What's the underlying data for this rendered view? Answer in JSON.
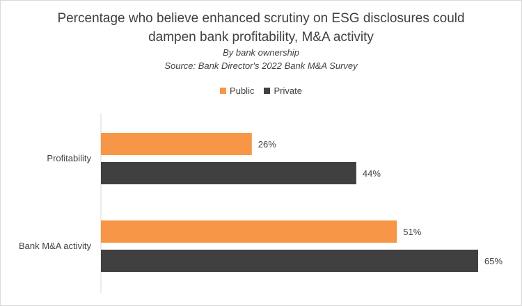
{
  "chart_data": {
    "type": "bar",
    "orientation": "horizontal",
    "title": "Percentage who believe enhanced scrutiny on ESG disclosures could dampen bank profitability, M&A activity",
    "subtitle": "By bank ownership",
    "source": "Source: Bank Director's 2022 Bank M&A Survey",
    "categories": [
      "Profitability",
      "Bank M&A activity"
    ],
    "series": [
      {
        "name": "Public",
        "color": "#f79646",
        "values": [
          26,
          51
        ],
        "labels": [
          "26%",
          "51%"
        ]
      },
      {
        "name": "Private",
        "color": "#404040",
        "values": [
          44,
          65
        ],
        "labels": [
          "44%",
          "65%"
        ]
      }
    ],
    "xlim": [
      0,
      65
    ],
    "grid": false,
    "legend_position": "top"
  }
}
